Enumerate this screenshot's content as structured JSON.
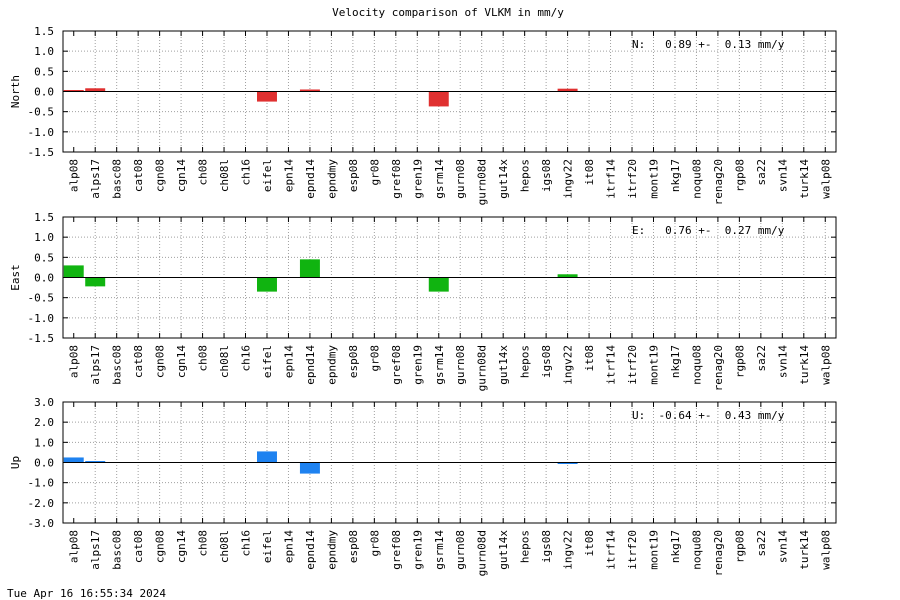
{
  "chart_data": {
    "type": "bar",
    "title": "Velocity comparison of VLKM in mm/y",
    "categories": [
      "alp08",
      "alps17",
      "basc08",
      "cat08",
      "cgn08",
      "cgn14",
      "ch08",
      "ch08l",
      "ch16",
      "eifel",
      "epn14",
      "epnd14",
      "epndmy",
      "esp08",
      "gr08",
      "gref08",
      "gren19",
      "gsrm14",
      "gurn08",
      "gurn08d",
      "gut14x",
      "hepos",
      "igs08",
      "ingv22",
      "it08",
      "itrf14",
      "itrf20",
      "mont19",
      "nkg17",
      "noqu08",
      "renag20",
      "rgp08",
      "sa22",
      "svn14",
      "turk14",
      "walp08"
    ],
    "grid": true,
    "panels": [
      {
        "name": "North",
        "ylabel": "North",
        "color": "#e03030",
        "ylim": [
          -1.5,
          1.5
        ],
        "ticks": [
          "1.5",
          "1.0",
          "0.5",
          "0.0",
          "-0.5",
          "-1.0",
          "-1.5"
        ],
        "summary": "N:   0.89 +-  0.13 mm/y",
        "values": [
          0.03,
          0.08,
          null,
          null,
          null,
          null,
          null,
          null,
          null,
          -0.25,
          null,
          0.05,
          null,
          null,
          null,
          null,
          null,
          -0.37,
          null,
          null,
          null,
          null,
          null,
          0.07,
          null,
          null,
          null,
          null,
          null,
          null,
          null,
          null,
          null,
          null,
          null,
          null
        ]
      },
      {
        "name": "East",
        "ylabel": "East",
        "color": "#10b410",
        "ylim": [
          -1.5,
          1.5
        ],
        "ticks": [
          "1.5",
          "1.0",
          "0.5",
          "0.0",
          "-0.5",
          "-1.0",
          "-1.5"
        ],
        "summary": "E:   0.76 +-  0.27 mm/y",
        "values": [
          0.3,
          -0.22,
          null,
          null,
          null,
          null,
          null,
          null,
          null,
          -0.35,
          null,
          0.45,
          null,
          null,
          null,
          null,
          null,
          -0.35,
          null,
          null,
          null,
          null,
          null,
          0.08,
          null,
          null,
          null,
          null,
          null,
          null,
          null,
          null,
          null,
          null,
          null,
          null
        ]
      },
      {
        "name": "Up",
        "ylabel": "Up",
        "color": "#1e82f0",
        "ylim": [
          -3.0,
          3.0
        ],
        "ticks": [
          "3.0",
          "2.0",
          "1.0",
          "0.0",
          "-1.0",
          "-2.0",
          "-3.0"
        ],
        "summary": "U:  -0.64 +-  0.43 mm/y",
        "values": [
          0.25,
          0.05,
          null,
          null,
          null,
          null,
          null,
          null,
          null,
          0.55,
          null,
          -0.55,
          null,
          null,
          null,
          null,
          null,
          null,
          null,
          null,
          null,
          null,
          null,
          -0.07,
          null,
          null,
          null,
          null,
          null,
          null,
          null,
          null,
          null,
          null,
          null,
          null
        ]
      }
    ]
  },
  "footer": {
    "timestamp": "Tue Apr 16 16:55:34 2024"
  }
}
